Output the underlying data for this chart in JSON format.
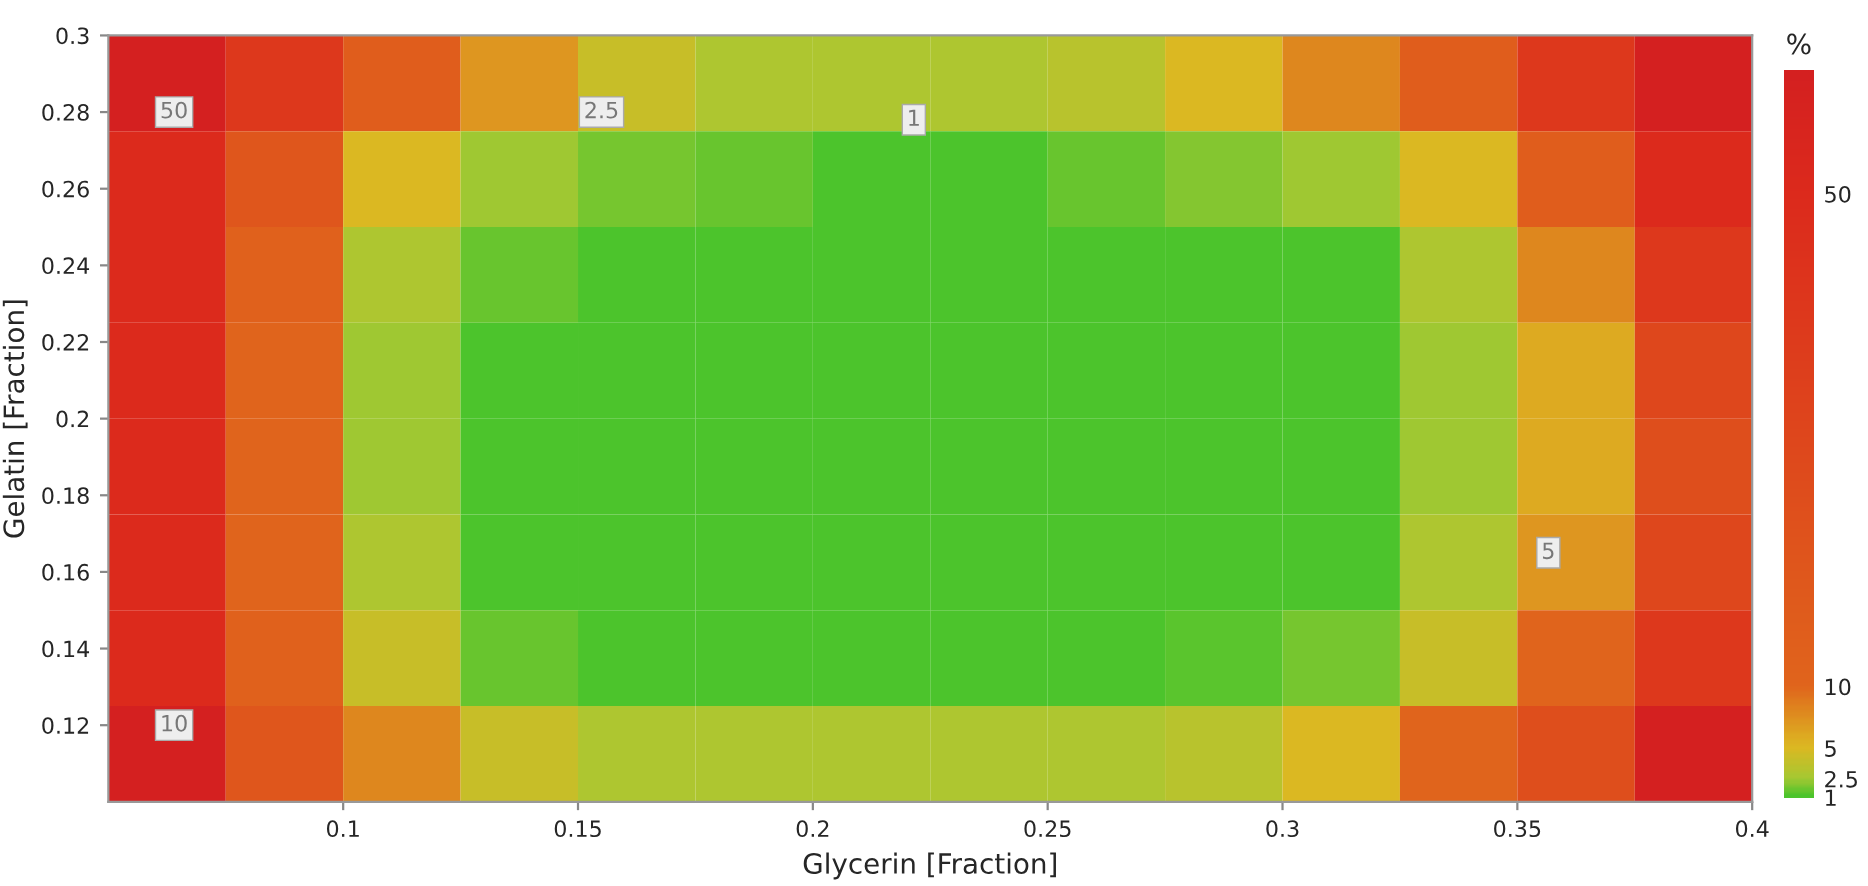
{
  "chart_data": {
    "type": "heatmap",
    "xlabel": "Glycerin [Fraction]",
    "ylabel": "Gelatin [Fraction]",
    "clabel": "%",
    "x": [
      0.0625,
      0.0875,
      0.1125,
      0.1375,
      0.1625,
      0.1875,
      0.2125,
      0.2375,
      0.2625,
      0.2875,
      0.3125,
      0.3375,
      0.3625,
      0.3875
    ],
    "y": [
      0.2875,
      0.2625,
      0.2375,
      0.2125,
      0.1875,
      0.1625,
      0.1375,
      0.1125
    ],
    "cells": [
      [
        60,
        40,
        15,
        7,
        4,
        3,
        3,
        3,
        3.5,
        5,
        8,
        15,
        40,
        60
      ],
      [
        50,
        20,
        5,
        2.5,
        1.8,
        1.5,
        1.2,
        1.2,
        1.5,
        2,
        2.5,
        5,
        15,
        50
      ],
      [
        50,
        12,
        3,
        1.5,
        1,
        1,
        1,
        1,
        1,
        1,
        1.2,
        3,
        8,
        40
      ],
      [
        50,
        10,
        2.5,
        1,
        1,
        1,
        1,
        1,
        1,
        1,
        1,
        2.5,
        6,
        30
      ],
      [
        50,
        10,
        2.5,
        1,
        1,
        1,
        1,
        1,
        1,
        1,
        1,
        2.5,
        6,
        25
      ],
      [
        50,
        10,
        3,
        1,
        1,
        1,
        1,
        1,
        1,
        1,
        1.2,
        3,
        7,
        30
      ],
      [
        50,
        12,
        4,
        1.5,
        1.2,
        1.2,
        1.2,
        1.2,
        1.2,
        1.3,
        1.8,
        4,
        10,
        40
      ],
      [
        60,
        20,
        8,
        4,
        3,
        3,
        3,
        3,
        3,
        3.5,
        5,
        10,
        25,
        60
      ]
    ],
    "xlim": [
      0.05,
      0.4
    ],
    "ylim": [
      0.1,
      0.3
    ],
    "xticks": [
      0.1,
      0.15,
      0.2,
      0.25,
      0.3,
      0.35,
      0.4
    ],
    "yticks": [
      0.12,
      0.14,
      0.16,
      0.18,
      0.2,
      0.22,
      0.24,
      0.26,
      0.28,
      0.3
    ],
    "clim": [
      1,
      60
    ],
    "cticks": [
      1,
      2.5,
      5,
      10,
      50
    ],
    "colors": [
      "#4cc42c",
      "#a6c832",
      "#dcb822",
      "#e0641c",
      "#dc2a1c",
      "#d42020"
    ],
    "annotations": [
      "50",
      "2.5",
      "1",
      "5",
      "10"
    ],
    "grid": false
  }
}
